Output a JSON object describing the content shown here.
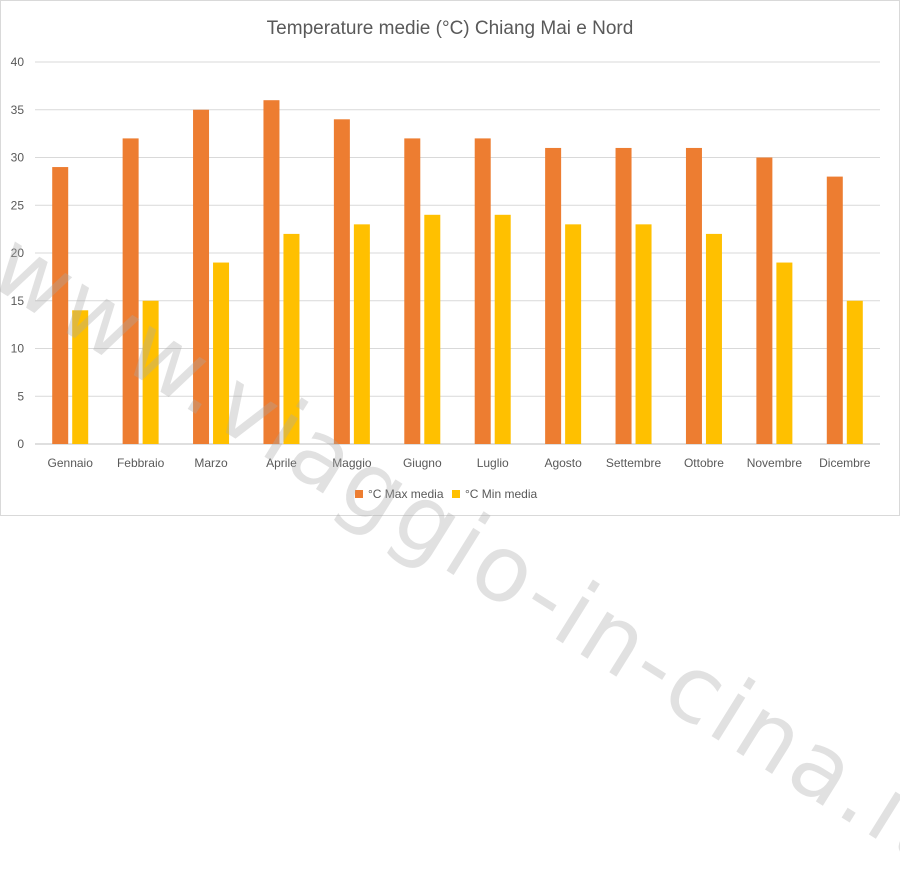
{
  "watermark": "www.viaggio-in-cina.it",
  "chart_data": {
    "type": "bar",
    "title": "Temperature medie (°C) Chiang Mai e Nord",
    "xlabel": "",
    "ylabel": "",
    "ylim": [
      0,
      40
    ],
    "yticks": [
      0,
      5,
      10,
      15,
      20,
      25,
      30,
      35,
      40
    ],
    "grid": true,
    "legend_position": "bottom",
    "categories": [
      "Gennaio",
      "Febbraio",
      "Marzo",
      "Aprile",
      "Maggio",
      "Giugno",
      "Luglio",
      "Agosto",
      "Settembre",
      "Ottobre",
      "Novembre",
      "Dicembre"
    ],
    "series": [
      {
        "name": "°C Max media",
        "color": "#ED7D31",
        "values": [
          29,
          32,
          35,
          36,
          34,
          32,
          32,
          31,
          31,
          31,
          30,
          28
        ]
      },
      {
        "name": "°C Min media",
        "color": "#FFC000",
        "values": [
          14,
          15,
          19,
          22,
          23,
          24,
          24,
          23,
          23,
          22,
          19,
          15
        ]
      }
    ]
  }
}
